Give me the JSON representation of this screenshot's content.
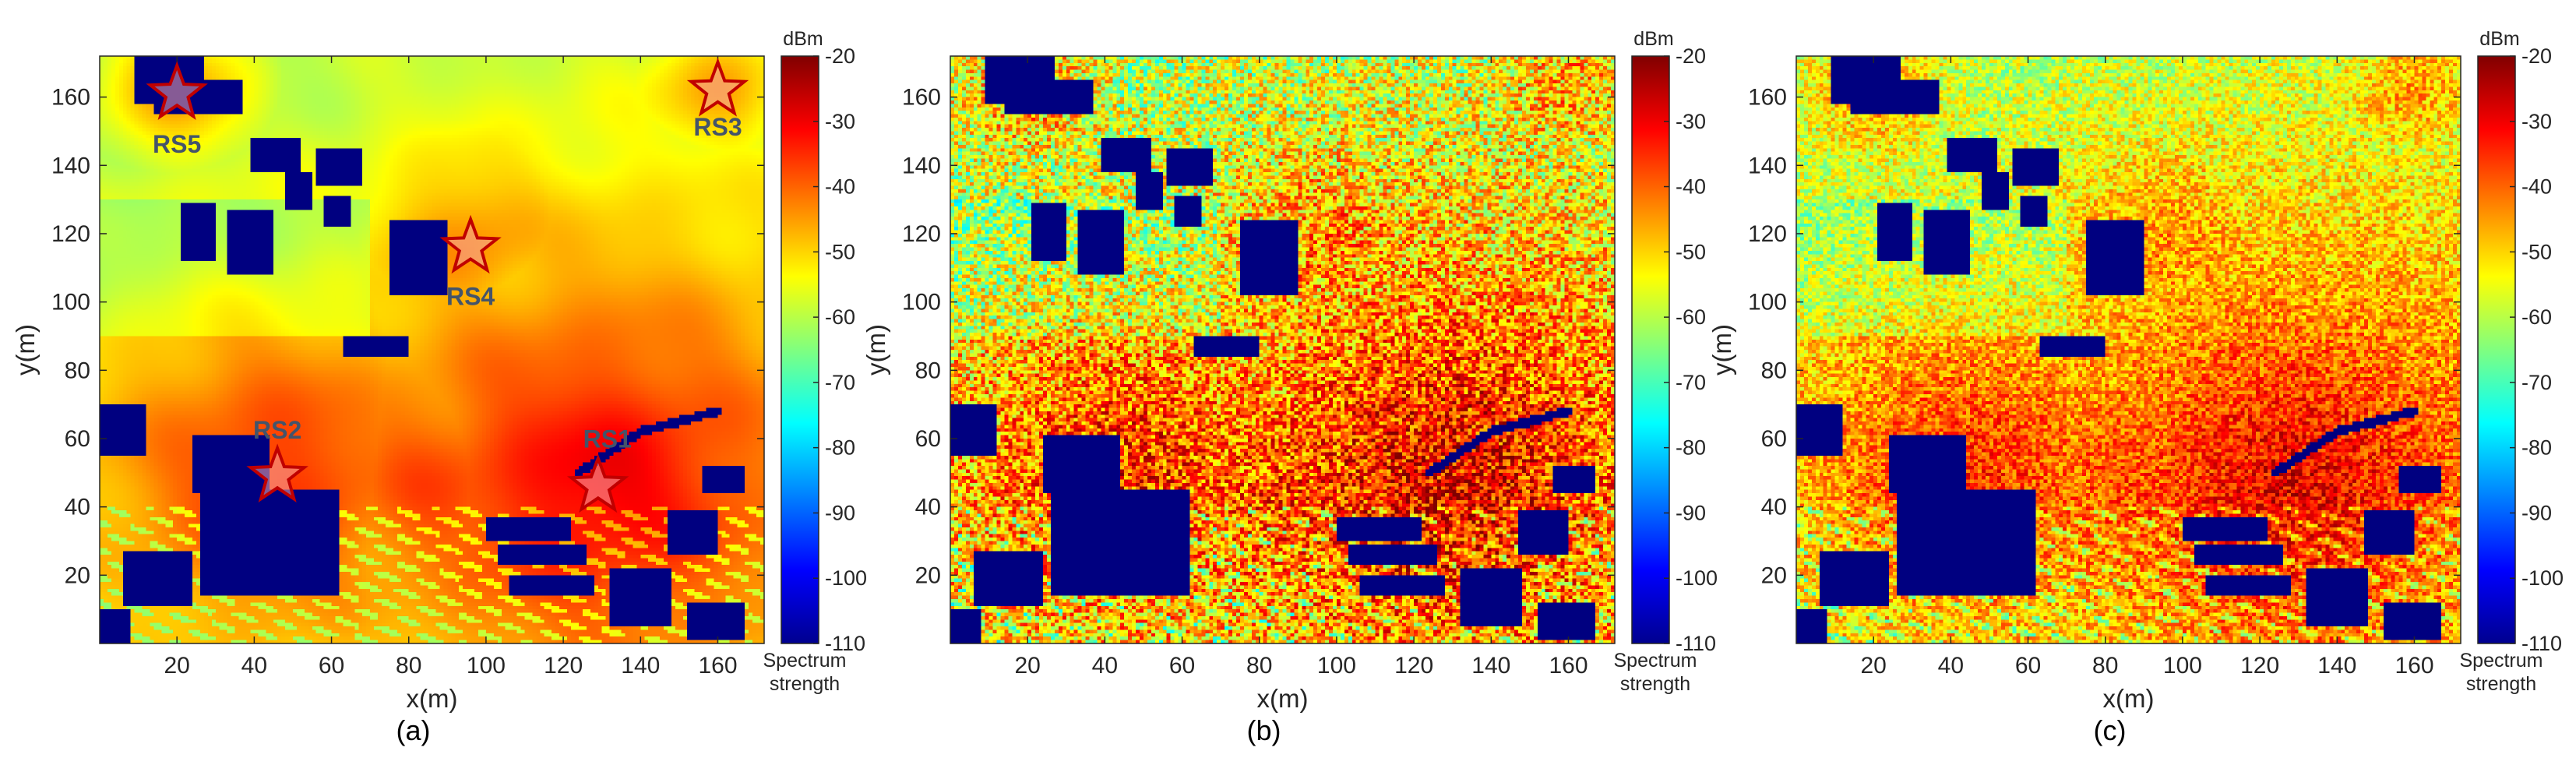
{
  "chart_data": [
    {
      "type": "heatmap",
      "panel_label": "(a)",
      "xlabel": "x(m)",
      "ylabel": "y(m)",
      "xlim": [
        0,
        172
      ],
      "ylim": [
        0,
        172
      ],
      "x_ticks": [
        "20",
        "40",
        "60",
        "80",
        "100",
        "120",
        "140",
        "160"
      ],
      "y_ticks": [
        "20",
        "40",
        "60",
        "80",
        "100",
        "120",
        "140",
        "160"
      ],
      "noise": "smooth",
      "colorbar": {
        "unit": "dBm",
        "caption": [
          "Spectrum",
          "strength"
        ],
        "range": [
          -110,
          -20
        ],
        "ticks": [
          "-20",
          "-30",
          "-40",
          "-50",
          "-60",
          "-70",
          "-80",
          "-90",
          "-100",
          "-110"
        ]
      },
      "markers": [
        {
          "label": "RS1",
          "x": 129,
          "y": 46
        },
        {
          "label": "RS2",
          "x": 46,
          "y": 49
        },
        {
          "label": "RS3",
          "x": 160,
          "y": 162
        },
        {
          "label": "RS4",
          "x": 96,
          "y": 116
        },
        {
          "label": "RS5",
          "x": 20,
          "y": 161
        }
      ]
    },
    {
      "type": "heatmap",
      "panel_label": "(b)",
      "xlabel": "x(m)",
      "ylabel": "y(m)",
      "xlim": [
        0,
        172
      ],
      "ylim": [
        0,
        172
      ],
      "x_ticks": [
        "20",
        "40",
        "60",
        "80",
        "100",
        "120",
        "140",
        "160"
      ],
      "y_ticks": [
        "20",
        "40",
        "60",
        "80",
        "100",
        "120",
        "140",
        "160"
      ],
      "noise": "heavy",
      "colorbar": {
        "unit": "dBm",
        "caption": [
          "Spectrum",
          "strength"
        ],
        "range": [
          -110,
          -20
        ],
        "ticks": [
          "-20",
          "-30",
          "-40",
          "-50",
          "-60",
          "-70",
          "-80",
          "-90",
          "-100",
          "-110"
        ]
      },
      "markers": []
    },
    {
      "type": "heatmap",
      "panel_label": "(c)",
      "xlabel": "x(m)",
      "ylabel": "y(m)",
      "xlim": [
        0,
        172
      ],
      "ylim": [
        0,
        172
      ],
      "x_ticks": [
        "20",
        "40",
        "60",
        "80",
        "100",
        "120",
        "140",
        "160"
      ],
      "y_ticks": [
        "20",
        "40",
        "60",
        "80",
        "100",
        "120",
        "140",
        "160"
      ],
      "noise": "medium",
      "colorbar": {
        "unit": "dBm",
        "caption": [
          "Spectrum",
          "strength"
        ],
        "range": [
          -110,
          -20
        ],
        "ticks": [
          "-20",
          "-30",
          "-40",
          "-50",
          "-60",
          "-70",
          "-80",
          "-90",
          "-100",
          "-110"
        ]
      },
      "markers": []
    }
  ],
  "colors": {
    "marker_fill": "#f4a6a6",
    "marker_stroke": "#c00000",
    "marker_label": "#44546a"
  }
}
